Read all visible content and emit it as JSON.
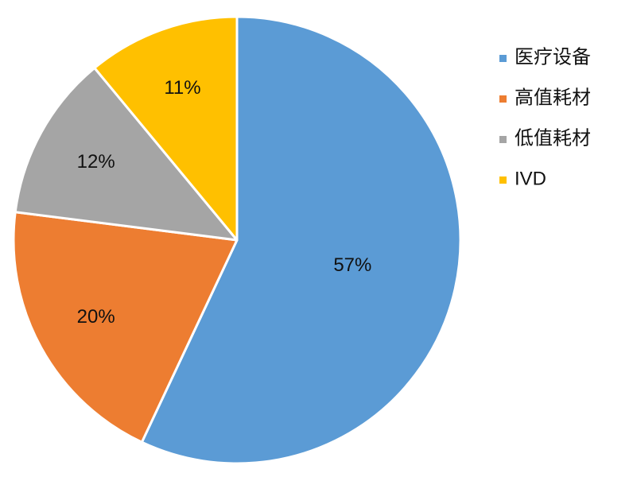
{
  "chart_data": {
    "type": "pie",
    "categories": [
      "医疗设备",
      "高值耗材",
      "低值耗材",
      "IVD"
    ],
    "values": [
      57,
      20,
      12,
      11
    ],
    "value_labels": [
      "57%",
      "20%",
      "12%",
      "11%"
    ],
    "colors": [
      "#5b9bd5",
      "#ed7d31",
      "#a5a5a5",
      "#ffc000"
    ],
    "legend": "right"
  }
}
